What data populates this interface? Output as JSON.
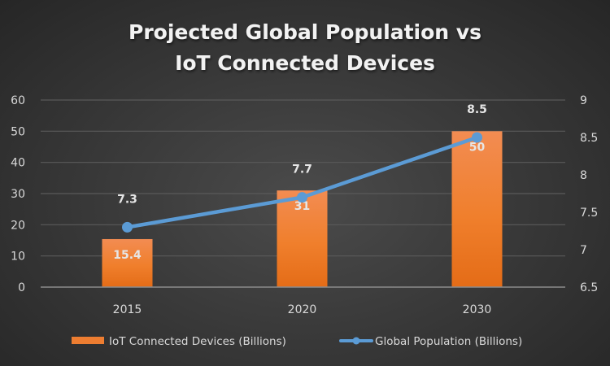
{
  "chart_data": {
    "type": "bar+line",
    "title": "Projected Global Population vs IoT Connected Devices",
    "title_lines": [
      "Projected Global Population vs",
      "IoT Connected Devices"
    ],
    "categories": [
      "2015",
      "2020",
      "2030"
    ],
    "series": [
      {
        "name": "IoT Connected Devices (Billions)",
        "type": "bar",
        "axis": "left",
        "values": [
          15.4,
          31,
          50
        ],
        "labels": [
          "15.4",
          "31",
          "50"
        ],
        "color": "#ED7D31"
      },
      {
        "name": "Global Population (Billions)",
        "type": "line",
        "axis": "right",
        "values": [
          7.3,
          7.7,
          8.5
        ],
        "labels": [
          "7.3",
          "7.7",
          "8.5"
        ],
        "color": "#5B9BD5"
      }
    ],
    "left_axis": {
      "ylim": [
        0,
        60
      ],
      "ticks": [
        "0",
        "10",
        "20",
        "30",
        "40",
        "50",
        "60"
      ]
    },
    "right_axis": {
      "ylim": [
        6.5,
        9
      ],
      "ticks": [
        "6.5",
        "7",
        "7.5",
        "8",
        "8.5",
        "9"
      ]
    },
    "grid": true,
    "legend": "bottom",
    "xlabel": "",
    "ylabel": ""
  }
}
